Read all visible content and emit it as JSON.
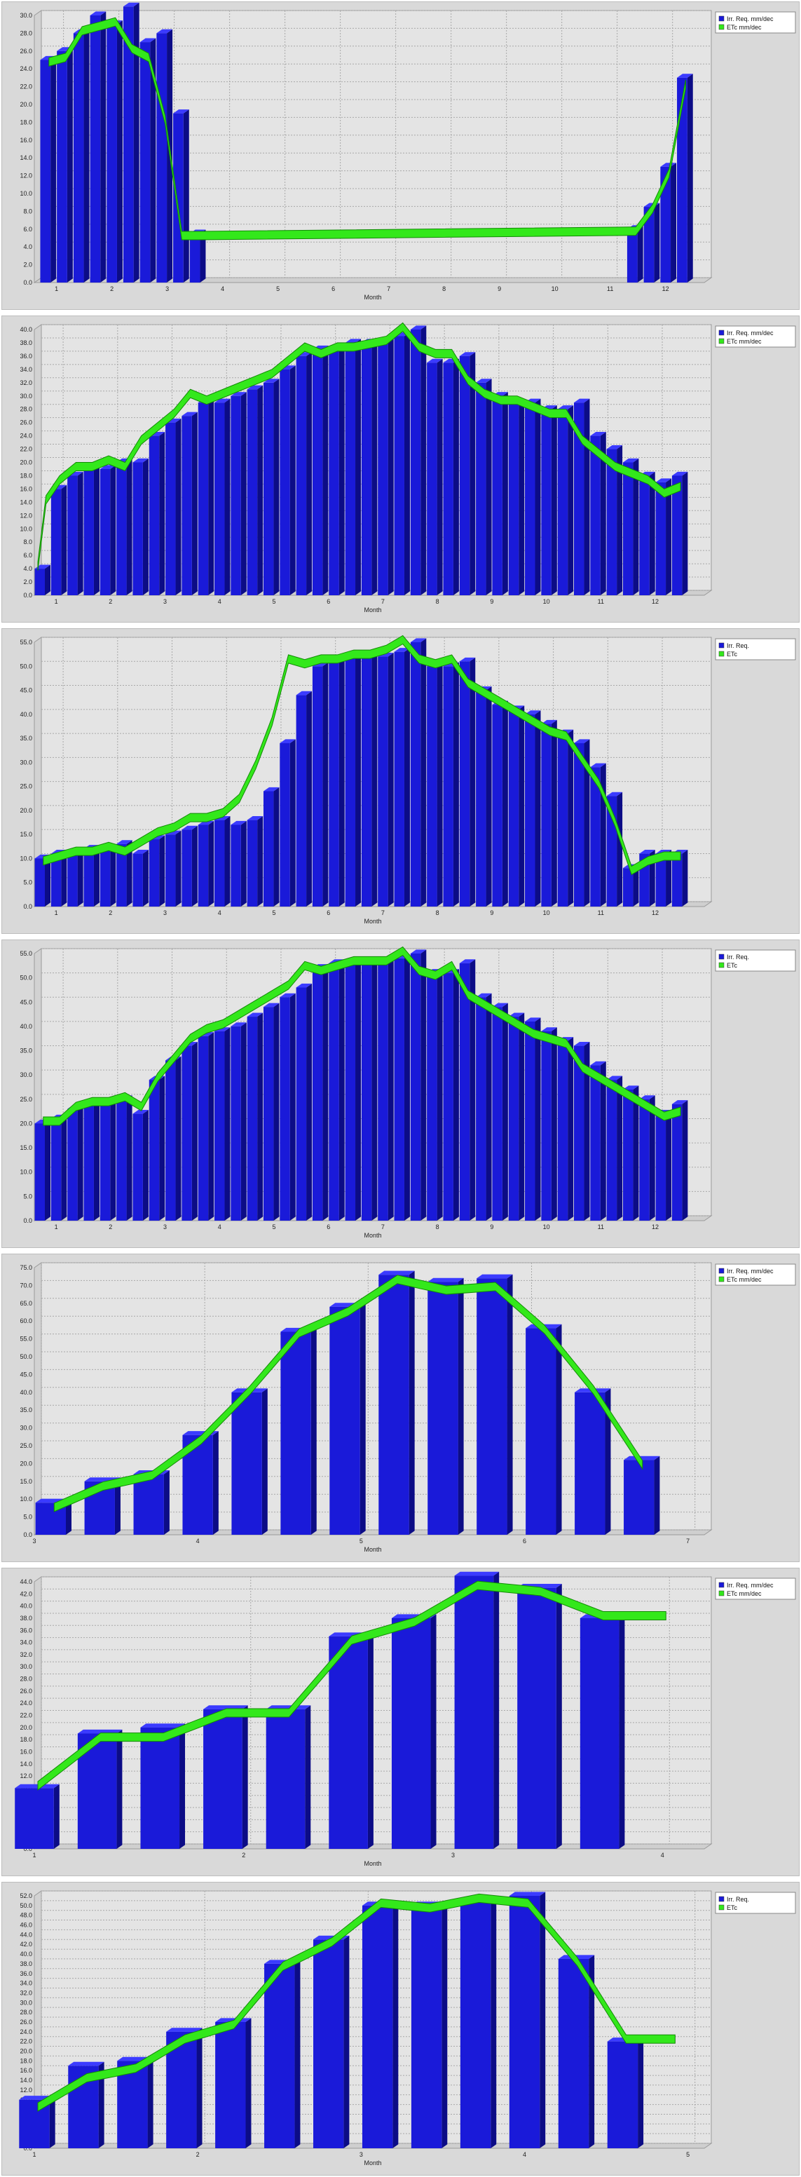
{
  "colors": {
    "bar_front": "#1a1ad9",
    "bar_side": "#0c0c86",
    "bar_top": "#3b3bff",
    "etc_band": "#33e81b",
    "etc_edge": "#118a05",
    "plot_bg": "#e4e4e4",
    "grid": "#a8a8a8"
  },
  "chart_data": [
    {
      "type": "bar",
      "xlabel": "Month",
      "ylabel": "",
      "ylim": [
        0,
        30
      ],
      "yticks": [
        0,
        2,
        4,
        6,
        8,
        10,
        12,
        14,
        16,
        18,
        20,
        22,
        24,
        26,
        28,
        30
      ],
      "xticks": [
        "1",
        "2",
        "3",
        "4",
        "5",
        "6",
        "7",
        "8",
        "9",
        "10",
        "11",
        "12"
      ],
      "x_range": [
        0.6,
        12.7
      ],
      "legend": [
        "Irr. Req. mm/dec",
        "ETc mm/dec"
      ],
      "legend_position": "top-right",
      "bars_x": [
        0.8,
        1.1,
        1.4,
        1.7,
        2.0,
        2.3,
        2.6,
        2.9,
        3.2,
        3.5,
        11.4,
        11.7,
        12.0,
        12.3
      ],
      "bars_y": [
        25,
        26,
        28,
        30,
        29,
        31,
        27,
        28,
        19,
        5.5,
        6,
        8.5,
        13,
        23
      ],
      "etc_x": [
        0.8,
        1.1,
        1.4,
        1.7,
        2.0,
        2.3,
        2.6,
        2.9,
        3.2,
        3.5,
        11.4,
        11.7,
        12.0,
        12.3
      ],
      "etc_y": [
        24.5,
        25,
        28,
        28.5,
        29,
        26,
        25,
        18,
        5,
        5,
        5.5,
        8,
        12,
        22
      ]
    },
    {
      "type": "bar",
      "xlabel": "Month",
      "ylabel": "",
      "ylim": [
        0,
        40
      ],
      "yticks": [
        0,
        2,
        4,
        6,
        8,
        10,
        12,
        14,
        16,
        18,
        20,
        22,
        24,
        26,
        28,
        30,
        32,
        34,
        36,
        38,
        40
      ],
      "xticks": [
        "1",
        "2",
        "3",
        "4",
        "5",
        "6",
        "7",
        "8",
        "9",
        "10",
        "11",
        "12"
      ],
      "x_range": [
        0.6,
        12.9
      ],
      "legend": [
        "Irr. Req. mm/dec",
        "ETc mm/dec"
      ],
      "legend_position": "top-right",
      "bars_x": [
        0.7,
        1.0,
        1.3,
        1.6,
        1.9,
        2.2,
        2.5,
        2.8,
        3.1,
        3.4,
        3.7,
        4.0,
        4.3,
        4.6,
        4.9,
        5.2,
        5.5,
        5.8,
        6.1,
        6.4,
        6.7,
        7.0,
        7.3,
        7.6,
        7.9,
        8.2,
        8.5,
        8.8,
        9.1,
        9.4,
        9.7,
        10.0,
        10.3,
        10.6,
        10.9,
        11.2,
        11.5,
        11.8,
        12.1,
        12.4
      ],
      "bars_y": [
        4,
        16,
        18,
        19,
        19,
        20,
        20,
        24,
        26,
        27,
        29,
        29,
        30,
        31,
        32,
        34,
        36,
        37,
        37,
        38,
        38,
        38,
        39,
        40,
        35,
        35,
        36,
        32,
        30,
        29,
        29,
        28,
        28,
        29,
        24,
        22,
        20,
        18,
        17,
        18
      ],
      "etc_x": [
        0.6,
        0.75,
        1.0,
        1.3,
        1.6,
        1.9,
        2.2,
        2.5,
        2.8,
        3.1,
        3.4,
        3.7,
        4.0,
        4.3,
        4.6,
        4.9,
        5.2,
        5.5,
        5.8,
        6.1,
        6.4,
        6.7,
        7.0,
        7.3,
        7.6,
        7.9,
        8.2,
        8.5,
        8.8,
        9.1,
        9.4,
        9.7,
        10.0,
        10.3,
        10.6,
        10.9,
        11.2,
        11.5,
        11.8,
        12.1,
        12.4
      ],
      "etc_y": [
        4,
        14,
        17,
        19,
        19,
        20,
        19,
        23,
        25,
        27,
        30,
        29,
        30,
        31,
        32,
        33,
        35,
        37,
        36,
        37,
        37,
        37.5,
        38,
        40,
        37,
        36,
        36,
        32,
        30,
        29,
        29,
        28,
        27,
        27,
        23,
        21,
        19,
        18,
        17,
        15,
        16
      ]
    },
    {
      "type": "bar",
      "xlabel": "Month",
      "ylabel": "",
      "ylim": [
        0,
        55
      ],
      "yticks": [
        0,
        5,
        10,
        15,
        20,
        25,
        30,
        35,
        40,
        45,
        50,
        55
      ],
      "xticks": [
        "1",
        "2",
        "3",
        "4",
        "5",
        "6",
        "7",
        "8",
        "9",
        "10",
        "11",
        "12"
      ],
      "x_range": [
        0.6,
        12.9
      ],
      "legend": [
        "Irr. Req.",
        "ETc"
      ],
      "legend_position": "top-right",
      "bars_x": [
        0.7,
        1.0,
        1.3,
        1.6,
        1.9,
        2.2,
        2.5,
        2.8,
        3.1,
        3.4,
        3.7,
        4.0,
        4.3,
        4.6,
        4.9,
        5.2,
        5.5,
        5.8,
        6.1,
        6.4,
        6.7,
        7.0,
        7.3,
        7.6,
        7.9,
        8.2,
        8.5,
        8.8,
        9.1,
        9.4,
        9.7,
        10.0,
        10.3,
        10.6,
        10.9,
        11.2,
        11.5,
        11.8,
        12.1,
        12.4
      ],
      "bars_y": [
        10,
        11,
        11,
        12,
        12,
        13,
        11,
        14,
        15,
        16,
        17,
        18,
        17,
        18,
        24,
        34,
        44,
        50,
        51,
        52,
        52,
        52,
        53,
        55,
        50,
        50,
        51,
        45,
        42,
        41,
        40,
        38,
        36,
        34,
        29,
        23,
        8,
        11,
        11,
        11
      ],
      "etc_x": [
        0.7,
        1.0,
        1.3,
        1.6,
        1.9,
        2.2,
        2.5,
        2.8,
        3.1,
        3.4,
        3.7,
        4.0,
        4.3,
        4.6,
        4.9,
        5.2,
        5.5,
        5.8,
        6.1,
        6.4,
        6.7,
        7.0,
        7.3,
        7.6,
        7.9,
        8.2,
        8.5,
        8.8,
        9.1,
        9.4,
        9.7,
        10.0,
        10.3,
        10.6,
        10.9,
        11.2,
        11.5,
        11.8,
        12.1,
        12.4
      ],
      "etc_y": [
        9,
        10,
        11,
        11,
        12,
        11,
        13,
        15,
        16,
        18,
        18,
        19,
        22,
        29,
        38,
        51,
        50,
        51,
        51,
        52,
        52,
        53,
        55,
        51,
        50,
        51,
        46,
        44,
        42,
        40,
        38,
        36,
        35,
        30,
        25,
        17,
        7,
        9,
        10,
        10
      ]
    },
    {
      "type": "bar",
      "xlabel": "Month",
      "ylabel": "",
      "ylim": [
        0,
        55
      ],
      "yticks": [
        0,
        5,
        10,
        15,
        20,
        25,
        30,
        35,
        40,
        45,
        50,
        55
      ],
      "xticks": [
        "1",
        "2",
        "3",
        "4",
        "5",
        "6",
        "7",
        "8",
        "9",
        "10",
        "11",
        "12"
      ],
      "x_range": [
        0.6,
        12.9
      ],
      "legend": [
        "Irr. Req.",
        "ETc"
      ],
      "legend_position": "top-right",
      "bars_x": [
        0.7,
        1.0,
        1.3,
        1.6,
        1.9,
        2.2,
        2.5,
        2.8,
        3.1,
        3.4,
        3.7,
        4.0,
        4.3,
        4.6,
        4.9,
        5.2,
        5.5,
        5.8,
        6.1,
        6.4,
        6.7,
        7.0,
        7.3,
        7.6,
        7.9,
        8.2,
        8.5,
        8.8,
        9.1,
        9.4,
        9.7,
        10.0,
        10.3,
        10.6,
        10.9,
        11.2,
        11.5,
        11.8,
        12.1,
        12.4
      ],
      "bars_y": [
        20,
        21,
        23,
        24,
        24,
        25,
        22,
        29,
        33,
        36,
        38,
        39,
        40,
        42,
        44,
        46,
        48,
        52,
        53,
        53,
        53,
        53,
        54,
        55,
        51,
        51,
        53,
        46,
        44,
        42,
        41,
        39,
        37,
        36,
        32,
        29,
        27,
        25,
        22,
        24
      ],
      "etc_x": [
        0.7,
        1.0,
        1.3,
        1.6,
        1.9,
        2.2,
        2.5,
        2.8,
        3.1,
        3.4,
        3.7,
        4.0,
        4.3,
        4.6,
        4.9,
        5.2,
        5.5,
        5.8,
        6.1,
        6.4,
        6.7,
        7.0,
        7.3,
        7.6,
        7.9,
        8.2,
        8.5,
        8.8,
        9.1,
        9.4,
        9.7,
        10.0,
        10.3,
        10.6,
        10.9,
        11.2,
        11.5,
        11.8,
        12.1,
        12.4
      ],
      "etc_y": [
        20,
        20,
        23,
        24,
        24,
        25,
        23,
        29,
        33,
        37,
        39,
        40,
        42,
        44,
        46,
        48,
        52,
        51,
        52,
        53,
        53,
        53,
        55,
        51,
        50,
        52,
        46,
        44,
        42,
        40,
        38,
        37,
        36,
        31,
        29,
        27,
        25,
        23,
        21,
        22
      ]
    },
    {
      "type": "bar",
      "xlabel": "Month",
      "ylabel": "",
      "ylim": [
        0,
        75
      ],
      "yticks": [
        0,
        5,
        10,
        15,
        20,
        25,
        30,
        35,
        40,
        45,
        50,
        55,
        60,
        65,
        70,
        75
      ],
      "xticks": [
        "3",
        "4",
        "5",
        "6",
        "7"
      ],
      "x_range": [
        3.0,
        7.1
      ],
      "legend": [
        "Irr. Req. mm/dec",
        "ETc mm/dec"
      ],
      "legend_position": "top-right",
      "bars_x": [
        3.1,
        3.4,
        3.7,
        4.0,
        4.3,
        4.6,
        4.9,
        5.2,
        5.5,
        5.8,
        6.1,
        6.4,
        6.7,
        7.0
      ],
      "bars_y": [
        9,
        15,
        17,
        28,
        40,
        57,
        64,
        73,
        71,
        72,
        58,
        40,
        21,
        0
      ],
      "etc_x": [
        3.1,
        3.4,
        3.7,
        4.0,
        4.3,
        4.6,
        4.9,
        5.2,
        5.5,
        5.8,
        6.1,
        6.4,
        6.7
      ],
      "etc_y": [
        7,
        13,
        16,
        26,
        40,
        56,
        62,
        71,
        68,
        69,
        57,
        40,
        19
      ]
    },
    {
      "type": "bar",
      "xlabel": "Month",
      "ylabel": "",
      "ylim": [
        0,
        44
      ],
      "yticks": [
        0,
        2,
        4,
        6,
        8,
        10,
        12,
        14,
        16,
        18,
        20,
        22,
        24,
        26,
        28,
        30,
        32,
        34,
        36,
        38,
        40,
        42,
        44
      ],
      "xticks": [
        "1",
        "2",
        "3",
        "4"
      ],
      "x_range": [
        1.0,
        4.2
      ],
      "legend": [
        "Irr. Req. mm/dec",
        "ETc mm/dec"
      ],
      "legend_position": "top-right",
      "bars_x": [
        1.0,
        1.3,
        1.6,
        1.9,
        2.2,
        2.5,
        2.8,
        3.1,
        3.4,
        3.7,
        4.0
      ],
      "bars_y": [
        10,
        19,
        20,
        23,
        23,
        35,
        38,
        45,
        43,
        38,
        0
      ],
      "etc_x": [
        1.0,
        1.3,
        1.6,
        1.9,
        2.2,
        2.5,
        2.8,
        3.1,
        3.4,
        3.7,
        4.0
      ],
      "etc_y": [
        10,
        18,
        18,
        22,
        22,
        34,
        37,
        43,
        42,
        38,
        38
      ]
    },
    {
      "type": "bar",
      "xlabel": "Month",
      "ylabel": "",
      "ylim": [
        0,
        52
      ],
      "yticks": [
        0,
        2,
        4,
        6,
        8,
        10,
        12,
        14,
        16,
        18,
        20,
        22,
        24,
        26,
        28,
        30,
        32,
        34,
        36,
        38,
        40,
        42,
        44,
        46,
        48,
        50,
        52
      ],
      "xticks": [
        "1",
        "2",
        "3",
        "4",
        "5"
      ],
      "x_range": [
        1.0,
        5.1
      ],
      "legend": [
        "Irr. Req.",
        "ETc"
      ],
      "legend_position": "top-right",
      "bars_x": [
        1.0,
        1.3,
        1.6,
        1.9,
        2.2,
        2.5,
        2.8,
        3.1,
        3.4,
        3.7,
        4.0,
        4.3,
        4.6,
        4.9
      ],
      "bars_y": [
        10,
        17,
        18,
        24,
        26,
        38,
        43,
        50,
        50,
        51,
        52,
        39,
        22,
        0
      ],
      "etc_x": [
        1.0,
        1.3,
        1.6,
        1.9,
        2.2,
        2.5,
        2.8,
        3.1,
        3.4,
        3.7,
        4.0,
        4.3,
        4.6,
        4.9
      ],
      "etc_y": [
        8,
        14,
        16,
        22,
        25,
        37,
        42,
        50,
        49,
        51,
        50,
        38,
        22,
        22
      ]
    }
  ]
}
